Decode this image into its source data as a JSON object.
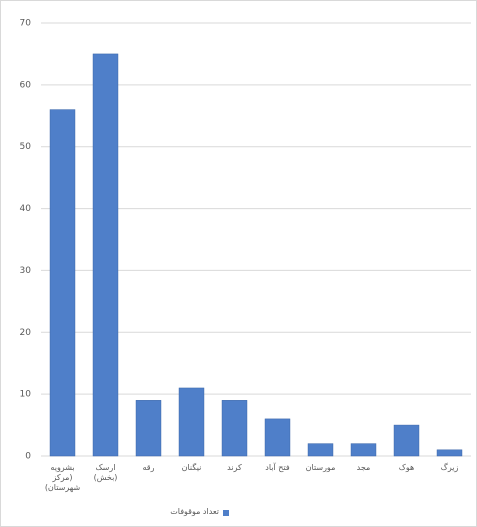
{
  "chart_data": {
    "type": "bar",
    "categories": [
      "بشرویه\n(مرکز\nشهرستان)",
      "ارسک\n(بخش)",
      "رقه",
      "نیگنان",
      "کرند",
      "فتح آباد",
      "مورستان",
      "مجد",
      "هوک",
      "زیرگ"
    ],
    "series": [
      {
        "name": "تعداد موقوفات",
        "color": "#4f7fc9",
        "values": [
          56,
          65,
          9,
          11,
          9,
          6,
          2,
          2,
          5,
          1
        ]
      }
    ],
    "ylim": [
      0,
      70
    ],
    "yticks": [
      0,
      10,
      20,
      30,
      40,
      50,
      60,
      70
    ],
    "grid": true,
    "legend": "bottom"
  }
}
